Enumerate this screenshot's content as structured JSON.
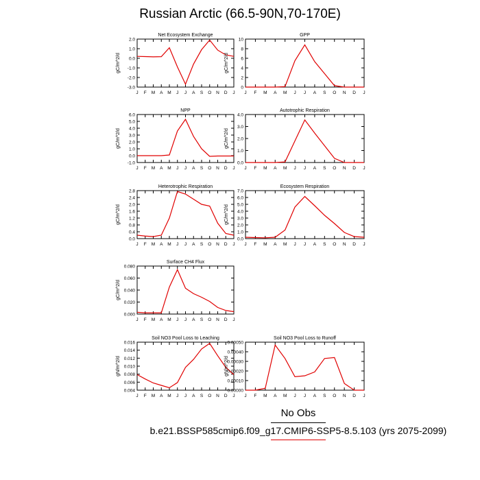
{
  "title": "Russian Arctic (66.5-90N,70-170E)",
  "footer": {
    "obs_label": "No Obs",
    "case_label": "b.e21.BSSP585cmip6.f09_g17.CMIP6-SSP5-8.5.103 (yrs 2075-2099)"
  },
  "colors": {
    "line": "#e00000",
    "axis": "#000000"
  },
  "chart_data": [
    {
      "type": "line",
      "title": "Net Ecosystem Exchange",
      "ylabel": "gC/m^2/d",
      "categories": [
        "J",
        "F",
        "M",
        "A",
        "M",
        "J",
        "J",
        "A",
        "S",
        "O",
        "N",
        "D",
        "J"
      ],
      "ylim": [
        -3.0,
        2.0
      ],
      "yticks": [
        -3.0,
        -2.0,
        -1.0,
        0.0,
        1.0,
        2.0
      ],
      "ytick_labels": [
        "-3.0",
        "-2.0",
        "-1.0",
        "0.0",
        "1.0",
        "2.0"
      ],
      "values": [
        0.2,
        0.18,
        0.15,
        0.17,
        1.1,
        -0.9,
        -2.7,
        -0.6,
        0.9,
        1.9,
        0.85,
        0.35,
        0.2
      ]
    },
    {
      "type": "line",
      "title": "GPP",
      "ylabel": "gC/m^2/d",
      "categories": [
        "J",
        "F",
        "M",
        "A",
        "M",
        "J",
        "J",
        "A",
        "S",
        "O",
        "N",
        "D",
        "J"
      ],
      "ylim": [
        0,
        10
      ],
      "yticks": [
        0,
        2,
        4,
        6,
        8,
        10
      ],
      "ytick_labels": [
        "0",
        "2",
        "4",
        "6",
        "8",
        "10"
      ],
      "values": [
        0,
        0,
        0,
        0,
        0.1,
        5.5,
        8.8,
        5.3,
        2.8,
        0.3,
        0,
        0,
        0
      ]
    },
    {
      "type": "line",
      "title": "NPP",
      "ylabel": "gC/m^2/d",
      "categories": [
        "J",
        "F",
        "M",
        "A",
        "M",
        "J",
        "J",
        "A",
        "S",
        "O",
        "N",
        "D",
        "J"
      ],
      "ylim": [
        -1.0,
        6.0
      ],
      "yticks": [
        -1.0,
        0.0,
        1.0,
        2.0,
        3.0,
        4.0,
        5.0,
        6.0
      ],
      "ytick_labels": [
        "-1.0",
        "0.0",
        "1.0",
        "2.0",
        "3.0",
        "4.0",
        "5.0",
        "6.0"
      ],
      "values": [
        0,
        0,
        0,
        0,
        0.1,
        3.6,
        5.3,
        2.8,
        1.0,
        -0.1,
        -0.05,
        -0.05,
        -0.05
      ]
    },
    {
      "type": "line",
      "title": "Autotrophic Respiration",
      "ylabel": "gC/m^2/d",
      "categories": [
        "J",
        "F",
        "M",
        "A",
        "M",
        "J",
        "J",
        "A",
        "S",
        "O",
        "N",
        "D",
        "J"
      ],
      "ylim": [
        0,
        4.0
      ],
      "yticks": [
        0,
        1.0,
        2.0,
        3.0,
        4.0
      ],
      "ytick_labels": [
        "0.0",
        "1.0",
        "2.0",
        "3.0",
        "4.0"
      ],
      "values": [
        0,
        0,
        0,
        0,
        0.05,
        1.8,
        3.55,
        2.45,
        1.4,
        0.35,
        0,
        0,
        0
      ]
    },
    {
      "type": "line",
      "title": "Heterotrophic Respiration",
      "ylabel": "gC/m^2/d",
      "categories": [
        "J",
        "F",
        "M",
        "A",
        "M",
        "J",
        "J",
        "A",
        "S",
        "O",
        "N",
        "D",
        "J"
      ],
      "ylim": [
        0,
        2.8
      ],
      "yticks": [
        0,
        0.4,
        0.8,
        1.2,
        1.6,
        2.0,
        2.4,
        2.8
      ],
      "ytick_labels": [
        "0.0",
        "0.4",
        "0.8",
        "1.2",
        "1.6",
        "2.0",
        "2.4",
        "2.8"
      ],
      "values": [
        0.2,
        0.15,
        0.12,
        0.2,
        1.2,
        2.75,
        2.6,
        2.3,
        2.0,
        1.9,
        0.9,
        0.3,
        0.2
      ]
    },
    {
      "type": "line",
      "title": "Ecosystem Respiration",
      "ylabel": "gC/m^2/d",
      "categories": [
        "J",
        "F",
        "M",
        "A",
        "M",
        "J",
        "J",
        "A",
        "S",
        "O",
        "N",
        "D",
        "J"
      ],
      "ylim": [
        0,
        7.0
      ],
      "yticks": [
        0,
        1.0,
        2.0,
        3.0,
        4.0,
        5.0,
        6.0,
        7.0
      ],
      "ytick_labels": [
        "0.0",
        "1.0",
        "2.0",
        "3.0",
        "4.0",
        "5.0",
        "6.0",
        "7.0"
      ],
      "values": [
        0.2,
        0.15,
        0.12,
        0.2,
        1.25,
        4.6,
        6.15,
        4.8,
        3.4,
        2.2,
        0.9,
        0.3,
        0.2
      ]
    },
    {
      "type": "line",
      "title": "Surface CH4 Flux",
      "ylabel": "gC/m^2/d",
      "categories": [
        "J",
        "F",
        "M",
        "A",
        "M",
        "J",
        "J",
        "A",
        "S",
        "O",
        "N",
        "D",
        "J"
      ],
      "ylim": [
        0,
        0.08
      ],
      "yticks": [
        0,
        0.02,
        0.04,
        0.06,
        0.08
      ],
      "ytick_labels": [
        "0.000",
        "0.020",
        "0.040",
        "0.060",
        "0.080"
      ],
      "values": [
        0.003,
        0.002,
        0.002,
        0.002,
        0.045,
        0.074,
        0.043,
        0.034,
        0.028,
        0.021,
        0.011,
        0.006,
        0.004
      ]
    },
    {
      "type": "line",
      "title": "Soil NO3 Pool Loss to Leaching",
      "ylabel": "gN/m^2/d",
      "categories": [
        "J",
        "F",
        "M",
        "A",
        "M",
        "J",
        "J",
        "A",
        "S",
        "O",
        "N",
        "D",
        "J"
      ],
      "ylim": [
        0.004,
        0.016
      ],
      "yticks": [
        0.004,
        0.006,
        0.008,
        0.01,
        0.012,
        0.014,
        0.016
      ],
      "ytick_labels": [
        "0.004",
        "0.006",
        "0.008",
        "0.010",
        "0.012",
        "0.014",
        "0.016"
      ],
      "values": [
        0.0079,
        0.0068,
        0.0058,
        0.0052,
        0.0046,
        0.0059,
        0.0097,
        0.0117,
        0.0143,
        0.0157,
        0.0126,
        0.0097,
        0.0079
      ]
    },
    {
      "type": "line",
      "title": "Soil NO3 Pool Loss to Runoff",
      "ylabel": "gN/m^2/d",
      "categories": [
        "J",
        "F",
        "M",
        "A",
        "M",
        "J",
        "J",
        "A",
        "S",
        "O",
        "N",
        "D",
        "J"
      ],
      "ylim": [
        0,
        0.0005
      ],
      "yticks": [
        0,
        0.0001,
        0.0002,
        0.0003,
        0.0004,
        0.0005
      ],
      "ytick_labels": [
        "0.00000",
        "0.00010",
        "0.00020",
        "0.00030",
        "0.00040",
        "0.00050"
      ],
      "values": [
        0,
        0,
        2e-05,
        0.00047,
        0.00033,
        0.00014,
        0.00015,
        0.00019,
        0.00033,
        0.00034,
        7e-05,
        0,
        0
      ]
    }
  ]
}
